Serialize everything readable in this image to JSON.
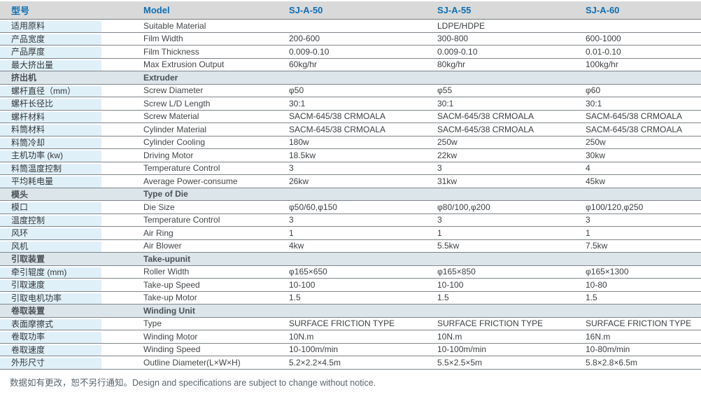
{
  "table": {
    "header": {
      "type_label_cn": "型号",
      "model_label_en": "Model",
      "models": [
        "SJ-A-50",
        "SJ-A-55",
        "SJ-A-60"
      ]
    },
    "rows": [
      {
        "type": "data",
        "cn": "适用原料",
        "en": "Suitable Material",
        "values": [
          "",
          "LDPE/HDPE",
          ""
        ]
      },
      {
        "type": "data",
        "cn": "产品宽度",
        "en": "Film Width",
        "values": [
          "200-600",
          "300-800",
          "600-1000"
        ]
      },
      {
        "type": "data",
        "cn": "产品厚度",
        "en": "Film Thickness",
        "values": [
          "0.009-0.10",
          "0.009-0.10",
          "0.01-0.10"
        ]
      },
      {
        "type": "data",
        "cn": "最大挤出量",
        "en": "Max Extrusion Output",
        "values": [
          "60kg/hr",
          "80kg/hr",
          "100kg/hr"
        ]
      },
      {
        "type": "section",
        "cn": "挤出机",
        "en": "Extruder"
      },
      {
        "type": "data",
        "cn": "螺杆直径（mm）",
        "en": "Screw Diameter",
        "values": [
          "φ50",
          "φ55",
          "φ60"
        ]
      },
      {
        "type": "data",
        "cn": "螺杆长径比",
        "en": "Screw L/D Length",
        "values": [
          "30:1",
          "30:1",
          "30:1"
        ]
      },
      {
        "type": "data",
        "cn": "螺杆材料",
        "en": "Screw Material",
        "values": [
          "SACM-645/38 CRMOALA",
          "SACM-645/38 CRMOALA",
          "SACM-645/38 CRMOALA"
        ]
      },
      {
        "type": "data",
        "cn": "料筒材料",
        "en": "Cylinder Material",
        "values": [
          "SACM-645/38 CRMOALA",
          "SACM-645/38 CRMOALA",
          "SACM-645/38 CRMOALA"
        ]
      },
      {
        "type": "data",
        "cn": "料筒冷却",
        "en": "Cylinder Cooling",
        "values": [
          "180w",
          "250w",
          "250w"
        ]
      },
      {
        "type": "data",
        "cn": "主机功率 (kw)",
        "en": "Driving Motor",
        "values": [
          "18.5kw",
          "22kw",
          "30kw"
        ]
      },
      {
        "type": "data",
        "cn": "料筒温度控制",
        "en": "Temperature Control",
        "values": [
          "3",
          "3",
          "4"
        ]
      },
      {
        "type": "data",
        "cn": "平均耗电量",
        "en": "Average Power-consume",
        "values": [
          "26kw",
          "31kw",
          "45kw"
        ]
      },
      {
        "type": "section",
        "cn": "模头",
        "en": "Type of Die"
      },
      {
        "type": "data",
        "cn": "模口",
        "en": "Die Size",
        "values": [
          "φ50/60,φ150",
          "φ80/100,φ200",
          "φ100/120,φ250"
        ]
      },
      {
        "type": "data",
        "cn": "温度控制",
        "en": "Temperature Control",
        "values": [
          "3",
          "3",
          "3"
        ]
      },
      {
        "type": "data",
        "cn": "风环",
        "en": "Air Ring",
        "values": [
          "1",
          "1",
          "1"
        ]
      },
      {
        "type": "data",
        "cn": "风机",
        "en": "Air Blower",
        "values": [
          "4kw",
          "5.5kw",
          "7.5kw"
        ]
      },
      {
        "type": "section",
        "cn": "引取装置",
        "en": "Take-upunit"
      },
      {
        "type": "data",
        "cn": "牵引辊度 (mm)",
        "en": "Roller Width",
        "values": [
          "φ165×650",
          "φ165×850",
          "φ165×1300"
        ]
      },
      {
        "type": "data",
        "cn": "引取速度",
        "en": "Take-up Speed",
        "values": [
          "10-100",
          "10-100",
          "10-80"
        ]
      },
      {
        "type": "data",
        "cn": "引取电机功率",
        "en": "Take-up Motor",
        "values": [
          "1.5",
          "1.5",
          "1.5"
        ]
      },
      {
        "type": "section",
        "cn": "卷取装置",
        "en": "Winding Unit"
      },
      {
        "type": "data",
        "cn": "表面摩擦式",
        "en": "Type",
        "values": [
          "SURFACE FRICTION TYPE",
          "SURFACE FRICTION TYPE",
          "SURFACE FRICTION TYPE"
        ]
      },
      {
        "type": "data",
        "cn": "卷取功率",
        "en": "Winding Motor",
        "values": [
          "10N.m",
          "10N.m",
          "16N.m"
        ]
      },
      {
        "type": "data",
        "cn": "卷取速度",
        "en": "Winding Speed",
        "values": [
          "10-100m/min",
          "10-100m/min",
          "10-80m/min"
        ]
      },
      {
        "type": "data",
        "cn": "外形尺寸",
        "en": "Outline Diameter(L×W×H)",
        "values": [
          "5.2×2.2×4.5m",
          "5.5×2.5×5m",
          "5.8×2.8×6.5m"
        ]
      }
    ]
  },
  "footer": {
    "note": "数据如有更改，恕不另行通知。Design and specifications are subject to change without notice."
  },
  "colors": {
    "header_text_blue": "#0d6eb4",
    "header_bg": "#d9d9d9",
    "section_row_bg": "#dbe5ea",
    "label_column_bg": "#e0f0f9",
    "row_border": "#7e858a",
    "footer_text": "#5a646c"
  }
}
